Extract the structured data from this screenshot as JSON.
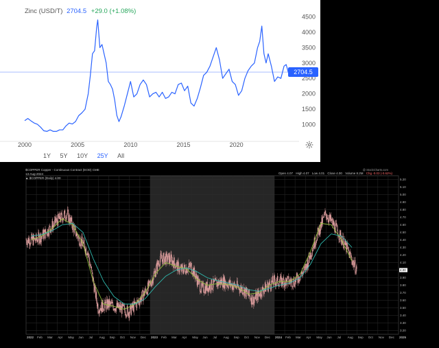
{
  "zinc": {
    "name": "Zinc (USD/T)",
    "last": "2704.5",
    "change": "+29.0 (+1.08%)",
    "price_tag": "2704.5",
    "ranges": [
      "1Y",
      "5Y",
      "10Y",
      "25Y",
      "All"
    ],
    "active_range": "25Y",
    "settings_icon": "gear-icon",
    "line_color": "#2962ff"
  },
  "copper": {
    "symbol_line": "$COPPER Copper - Continuous Contract (EOD) CME",
    "date_line": "13-Aug-2024",
    "indicator_line": "▲ $COPPER (Daily) 4.00",
    "credit": "@ StockCharts.com",
    "ohlc": {
      "open": "Open 4.07",
      "high": "High 4.07",
      "low": "Low 4.01",
      "close": "Close 4.00",
      "volume": "Volume 8.2M",
      "chg": "Chg -0.03 (-0.62%)"
    },
    "candle_up_color": "#d89a9a",
    "candle_down_color": "#d89a9a",
    "ma_fast_color": "#8fbf3a",
    "ma_slow_color": "#2fb8ad"
  },
  "chart_data": [
    {
      "type": "line",
      "title": "Zinc (USD/T)",
      "x_ticks": [
        2000,
        2005,
        2010,
        2015,
        2020
      ],
      "y_ticks": [
        1000,
        1500,
        2000,
        2500,
        3000,
        3500,
        4000,
        4500
      ],
      "xlim": [
        2000,
        2025.4
      ],
      "ylim": [
        500,
        4600
      ],
      "grid": false,
      "x": [
        2000.0,
        2000.3,
        2000.6,
        2000.9,
        2001.2,
        2001.5,
        2001.8,
        2002.1,
        2002.4,
        2002.7,
        2003.0,
        2003.3,
        2003.6,
        2003.9,
        2004.2,
        2004.5,
        2004.8,
        2005.1,
        2005.4,
        2005.7,
        2006.0,
        2006.2,
        2006.4,
        2006.6,
        2006.8,
        2006.9,
        2007.1,
        2007.3,
        2007.5,
        2007.7,
        2007.9,
        2008.1,
        2008.3,
        2008.5,
        2008.7,
        2008.9,
        2009.1,
        2009.4,
        2009.7,
        2010.0,
        2010.3,
        2010.6,
        2010.9,
        2011.2,
        2011.5,
        2011.8,
        2012.1,
        2012.4,
        2012.7,
        2013.0,
        2013.3,
        2013.6,
        2013.9,
        2014.2,
        2014.5,
        2014.8,
        2015.1,
        2015.4,
        2015.7,
        2016.0,
        2016.3,
        2016.6,
        2016.9,
        2017.2,
        2017.5,
        2017.8,
        2018.1,
        2018.4,
        2018.7,
        2019.0,
        2019.3,
        2019.6,
        2019.9,
        2020.2,
        2020.5,
        2020.8,
        2021.1,
        2021.4,
        2021.7,
        2022.0,
        2022.2,
        2022.4,
        2022.6,
        2022.8,
        2023.0,
        2023.3,
        2023.6,
        2023.9,
        2024.2,
        2024.5,
        2024.7,
        2024.9,
        2025.0
      ],
      "values": [
        1130,
        1200,
        1120,
        1050,
        1010,
        920,
        800,
        780,
        830,
        780,
        780,
        830,
        830,
        960,
        1050,
        1020,
        1100,
        1290,
        1380,
        1500,
        2000,
        2600,
        3300,
        3400,
        4150,
        4400,
        3500,
        3600,
        3300,
        3000,
        2400,
        2300,
        2150,
        1800,
        1300,
        1100,
        1250,
        1600,
        2000,
        2400,
        1900,
        2000,
        2300,
        2450,
        2300,
        1900,
        2000,
        2050,
        1900,
        2050,
        1850,
        1900,
        2050,
        2000,
        2300,
        2350,
        2100,
        2250,
        1700,
        1600,
        1850,
        2200,
        2600,
        2700,
        2900,
        3200,
        3500,
        3100,
        2500,
        2650,
        2800,
        2400,
        2300,
        1950,
        2100,
        2500,
        2750,
        2900,
        3000,
        3500,
        3700,
        4200,
        3300,
        3000,
        3300,
        2900,
        2400,
        2550,
        2500,
        2900,
        2950,
        2700,
        2704.5
      ]
    },
    {
      "type": "candlestick",
      "title": "$COPPER Copper - Continuous Contract (EOD) CME",
      "x_ticks": [
        "2022",
        "Feb",
        "Mar",
        "Apr",
        "May",
        "Jun",
        "Jul",
        "Aug",
        "Sep",
        "Oct",
        "Nov",
        "Dec",
        "2023",
        "Feb",
        "Mar",
        "Apr",
        "May",
        "Jun",
        "Jul",
        "Aug",
        "Sep",
        "Oct",
        "Nov",
        "Dec",
        "2024",
        "Feb",
        "Mar",
        "Apr",
        "May",
        "Jun",
        "Jul",
        "Aug",
        "Sep",
        "Oct",
        "Nov",
        "Dec",
        "2025"
      ],
      "y_ticks": [
        3.2,
        3.3,
        3.4,
        3.5,
        3.6,
        3.7,
        3.8,
        3.9,
        4.0,
        4.1,
        4.2,
        4.3,
        4.4,
        4.5,
        4.6,
        4.7,
        4.8,
        4.9,
        5.0,
        5.1,
        5.2
      ],
      "ylim": [
        3.15,
        5.25
      ],
      "month_index": [
        0,
        1,
        2,
        3,
        4,
        5,
        6,
        7,
        8,
        9,
        10,
        11,
        12,
        13,
        14,
        15,
        16,
        17,
        18,
        19,
        20,
        21,
        22,
        23,
        24,
        25,
        26,
        27,
        28,
        29,
        30,
        31
      ],
      "close_by_month": [
        4.4,
        4.5,
        4.65,
        4.75,
        4.45,
        4.25,
        3.5,
        3.55,
        3.5,
        3.45,
        3.6,
        3.8,
        4.15,
        4.15,
        4.0,
        4.05,
        3.75,
        3.8,
        3.85,
        3.8,
        3.75,
        3.6,
        3.75,
        3.85,
        3.85,
        3.85,
        4.0,
        4.4,
        4.75,
        4.55,
        4.3,
        4.0
      ],
      "last": 4.0,
      "series": [
        {
          "name": "MA fast",
          "values": [
            4.4,
            4.45,
            4.55,
            4.68,
            4.6,
            4.35,
            3.85,
            3.55,
            3.52,
            3.48,
            3.55,
            3.7,
            3.95,
            4.1,
            4.05,
            4.02,
            3.88,
            3.8,
            3.82,
            3.81,
            3.77,
            3.68,
            3.7,
            3.8,
            3.85,
            3.85,
            3.95,
            4.25,
            4.62,
            4.6,
            4.4,
            4.12
          ]
        },
        {
          "name": "MA slow",
          "values": [
            4.45,
            4.47,
            4.52,
            4.6,
            4.62,
            4.5,
            4.15,
            3.85,
            3.65,
            3.55,
            3.55,
            3.62,
            3.78,
            3.92,
            4.0,
            4.03,
            3.98,
            3.9,
            3.86,
            3.83,
            3.8,
            3.74,
            3.72,
            3.76,
            3.8,
            3.83,
            3.9,
            4.08,
            4.35,
            4.48,
            4.45,
            4.3
          ]
        }
      ]
    }
  ]
}
